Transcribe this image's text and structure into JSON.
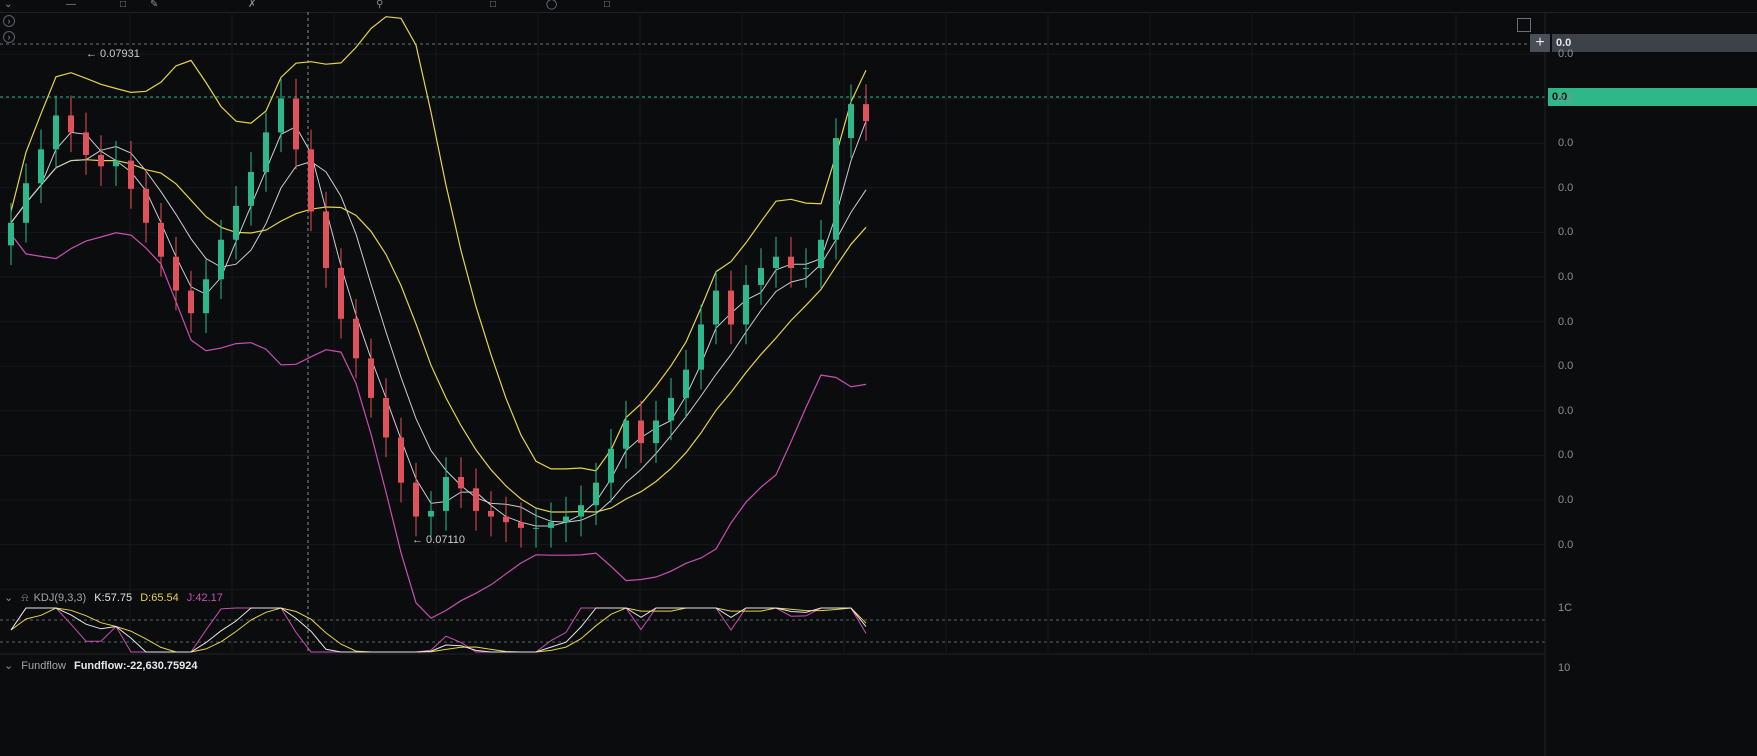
{
  "toolbar": {
    "icons": [
      "cursor-icon",
      "line-tool-icon",
      "draw-icon",
      "text-icon",
      "measure-icon",
      "magnet-icon",
      "lock-icon",
      "eye-icon",
      "trash-icon"
    ]
  },
  "price_labels": {
    "high_label": "← 0.07931",
    "low_label": "← 0.07110"
  },
  "right_axis": {
    "last_price_tag": "0.0",
    "top_tag": "0.0",
    "tick_labels": [
      "0.0",
      "0.0",
      "0.0",
      "0.0",
      "0.0",
      "0.0",
      "0.0",
      "0.0",
      "0.0",
      "0.0",
      "0.0",
      "0.0"
    ],
    "kdj_top_label": "1C",
    "kdj_bottom_label": "10"
  },
  "kdj": {
    "name": "KDJ(9,3,3)",
    "k_label": "K:57.75",
    "d_label": "D:65.54",
    "j_label": "J:42.17",
    "k": 57.75,
    "d": 65.54,
    "j": 42.17
  },
  "fundflow": {
    "name": "Fundflow",
    "value_label": "Fundflow:-22,630.75924",
    "value": -22630.75924
  },
  "colors": {
    "background": "#0b0c0e",
    "up": "#2eb88a",
    "down": "#e0525b",
    "bollinger": "#e6d34a",
    "lower_band": "#c94fb4",
    "ma": "#c8ccd2",
    "k_line": "#e6e6e6",
    "d_line": "#e6d34a",
    "j_line": "#c94fb4",
    "last_price_tag": "#2eb88a"
  },
  "chart_data": {
    "type": "line",
    "title": "",
    "price_extremes": {
      "high": 0.07931,
      "low": 0.0711
    },
    "series": [
      {
        "values": [
          0.0768,
          0.0775,
          0.0781,
          0.0787,
          0.0784,
          0.078,
          0.0778,
          0.0779,
          0.0774,
          0.0768,
          0.0762,
          0.0756,
          0.0752,
          0.0758,
          0.0765,
          0.0771,
          0.0777,
          0.0784,
          0.079,
          0.0781,
          0.077,
          0.076,
          0.0751,
          0.0744,
          0.0737,
          0.073,
          0.0722,
          0.0716,
          0.0717,
          0.0723,
          0.0721,
          0.0717,
          0.0716,
          0.0715,
          0.0714,
          0.0714,
          0.0715,
          0.0716,
          0.0718,
          0.0722,
          0.0728,
          0.0733,
          0.0729,
          0.0733,
          0.0737,
          0.0742,
          0.075,
          0.0756,
          0.075,
          0.0757,
          0.076,
          0.0762,
          0.076,
          0.076,
          0.0765,
          0.0783,
          0.0789,
          0.0786
        ]
      }
    ]
  }
}
